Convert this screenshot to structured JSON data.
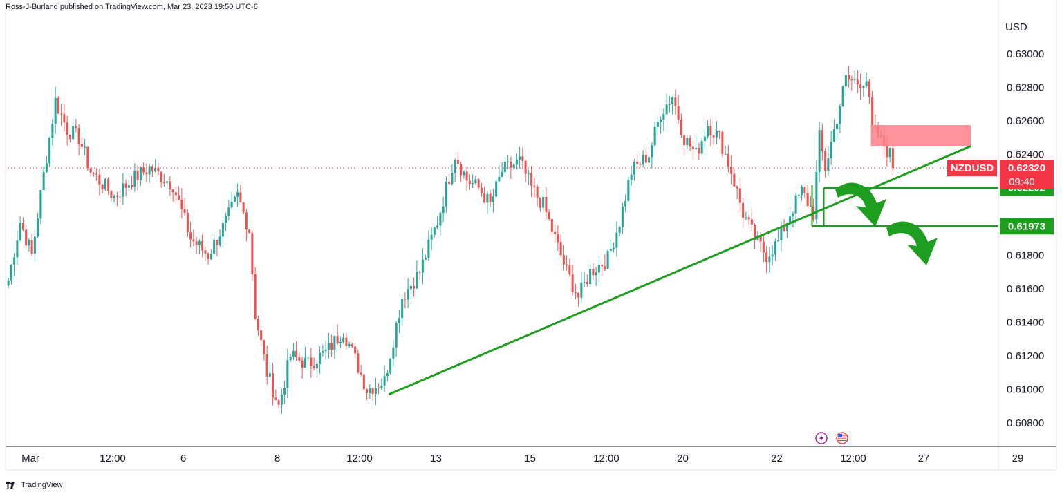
{
  "header": {
    "published_by": "Ross-J-Burland published on TradingView.com, Mar 23, 2023 19:50 UTC-6"
  },
  "footer": {
    "logo_text": "TradingView"
  },
  "colors": {
    "up": "#26a69a",
    "down": "#ef5350",
    "trend": "#1e9e1e",
    "zone": "#ff7f8a",
    "price_tag": "#f23645",
    "level_tag": "#1e9e1e",
    "axis": "#131722",
    "dotted": "#f23645"
  },
  "chart_data": {
    "type": "candlestick",
    "symbol": "NZDUSD",
    "currency": "USD",
    "last_price": "0.62320",
    "countdown": "09:40",
    "y_ticks": [
      "0.63000",
      "0.62800",
      "0.62600",
      "0.62400",
      "0.62200",
      "0.62000",
      "0.61800",
      "0.61600",
      "0.61400",
      "0.61200",
      "0.61000",
      "0.60800"
    ],
    "y_tick_values": [
      0.63,
      0.628,
      0.626,
      0.624,
      0.622,
      0.62,
      0.618,
      0.616,
      0.614,
      0.612,
      0.61,
      0.608
    ],
    "ylim": [
      0.6072,
      0.6308
    ],
    "x_ticks": [
      "Mar",
      "12:00",
      "6",
      "8",
      "12:00",
      "13",
      "15",
      "12:00",
      "20",
      "22",
      "12:00",
      "27",
      "29"
    ],
    "x_tick_index": [
      8,
      36,
      60,
      92,
      120,
      146,
      178,
      204,
      230,
      262,
      288,
      312,
      344
    ],
    "n_bars": 360,
    "level_tags": [
      {
        "label": "0.62202",
        "value": 0.62202
      },
      {
        "label": "0.61973",
        "value": 0.61973
      }
    ],
    "anchors": [
      {
        "i": 0,
        "v": 0.6165
      },
      {
        "i": 4,
        "v": 0.62
      },
      {
        "i": 8,
        "v": 0.618
      },
      {
        "i": 12,
        "v": 0.6228
      },
      {
        "i": 16,
        "v": 0.6272
      },
      {
        "i": 20,
        "v": 0.6255
      },
      {
        "i": 24,
        "v": 0.625
      },
      {
        "i": 28,
        "v": 0.623
      },
      {
        "i": 36,
        "v": 0.6215
      },
      {
        "i": 42,
        "v": 0.6225
      },
      {
        "i": 48,
        "v": 0.6232
      },
      {
        "i": 56,
        "v": 0.6222
      },
      {
        "i": 62,
        "v": 0.619
      },
      {
        "i": 68,
        "v": 0.618
      },
      {
        "i": 74,
        "v": 0.62
      },
      {
        "i": 78,
        "v": 0.6215
      },
      {
        "i": 82,
        "v": 0.6195
      },
      {
        "i": 84,
        "v": 0.6145
      },
      {
        "i": 88,
        "v": 0.611
      },
      {
        "i": 92,
        "v": 0.609
      },
      {
        "i": 96,
        "v": 0.612
      },
      {
        "i": 102,
        "v": 0.6115
      },
      {
        "i": 108,
        "v": 0.6122
      },
      {
        "i": 114,
        "v": 0.6135
      },
      {
        "i": 118,
        "v": 0.6118
      },
      {
        "i": 122,
        "v": 0.61
      },
      {
        "i": 128,
        "v": 0.6105
      },
      {
        "i": 134,
        "v": 0.6155
      },
      {
        "i": 140,
        "v": 0.617
      },
      {
        "i": 146,
        "v": 0.62
      },
      {
        "i": 152,
        "v": 0.624
      },
      {
        "i": 156,
        "v": 0.6225
      },
      {
        "i": 160,
        "v": 0.622
      },
      {
        "i": 164,
        "v": 0.621
      },
      {
        "i": 168,
        "v": 0.623
      },
      {
        "i": 174,
        "v": 0.6236
      },
      {
        "i": 178,
        "v": 0.622
      },
      {
        "i": 182,
        "v": 0.621
      },
      {
        "i": 186,
        "v": 0.619
      },
      {
        "i": 190,
        "v": 0.617
      },
      {
        "i": 194,
        "v": 0.6155
      },
      {
        "i": 198,
        "v": 0.617
      },
      {
        "i": 204,
        "v": 0.6178
      },
      {
        "i": 208,
        "v": 0.62
      },
      {
        "i": 212,
        "v": 0.623
      },
      {
        "i": 218,
        "v": 0.624
      },
      {
        "i": 222,
        "v": 0.6265
      },
      {
        "i": 226,
        "v": 0.6275
      },
      {
        "i": 230,
        "v": 0.625
      },
      {
        "i": 234,
        "v": 0.624
      },
      {
        "i": 238,
        "v": 0.6258
      },
      {
        "i": 242,
        "v": 0.625
      },
      {
        "i": 246,
        "v": 0.623
      },
      {
        "i": 250,
        "v": 0.6205
      },
      {
        "i": 254,
        "v": 0.619
      },
      {
        "i": 258,
        "v": 0.618
      },
      {
        "i": 262,
        "v": 0.6188
      },
      {
        "i": 266,
        "v": 0.6205
      },
      {
        "i": 270,
        "v": 0.6218
      },
      {
        "i": 274,
        "v": 0.6205
      },
      {
        "i": 276,
        "v": 0.625
      },
      {
        "i": 278,
        "v": 0.6232
      },
      {
        "i": 282,
        "v": 0.6262
      },
      {
        "i": 285,
        "v": 0.6285
      },
      {
        "i": 289,
        "v": 0.6283
      },
      {
        "i": 292,
        "v": 0.6285
      },
      {
        "i": 294,
        "v": 0.6255
      },
      {
        "i": 297,
        "v": 0.6248
      },
      {
        "i": 300,
        "v": 0.624
      },
      {
        "i": 301,
        "v": 0.6232
      }
    ],
    "trend_line": {
      "x0": 130,
      "v0": 0.6097,
      "x1": 328,
      "v1": 0.6245
    },
    "resistance_zone": {
      "x0": 294,
      "x1": 328,
      "v_low": 0.62448,
      "v_high": 0.62575
    },
    "box": {
      "x0": 278,
      "x1": 368,
      "v_top": 0.62202,
      "v_bottom": 0.61973
    },
    "box_left_ext": {
      "x": 274
    }
  }
}
